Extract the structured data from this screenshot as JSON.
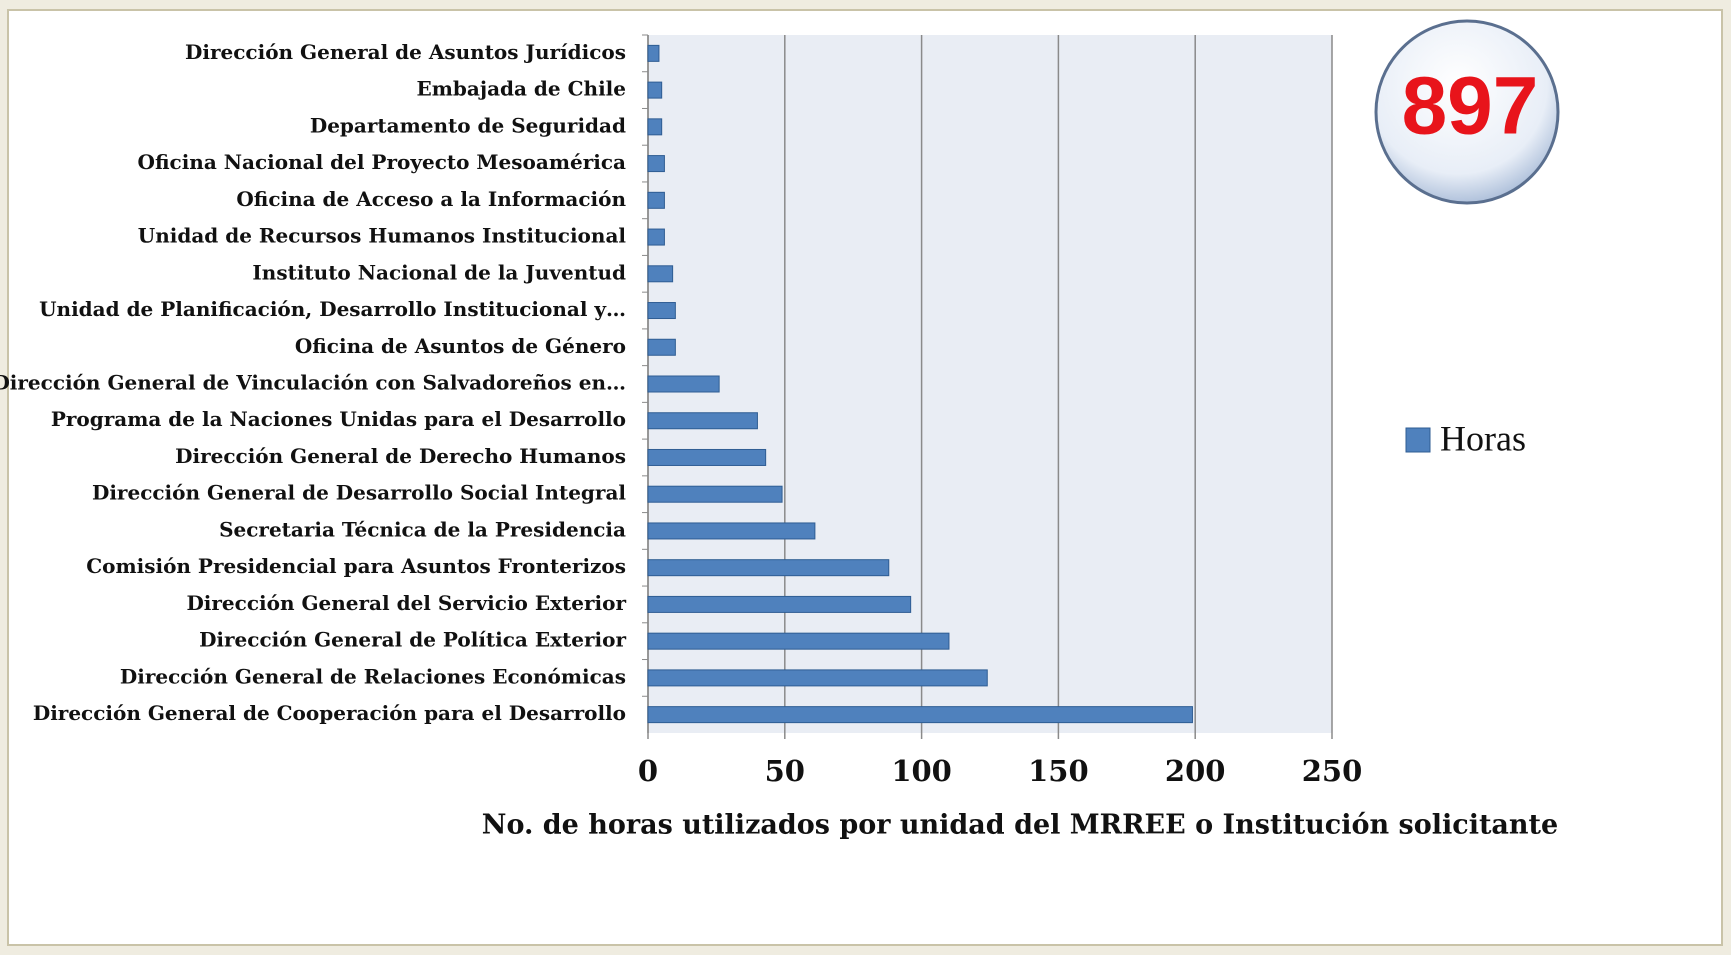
{
  "chart_data": {
    "type": "barh",
    "categories": [
      "Dirección General de Asuntos Jurídicos",
      "Embajada de Chile",
      "Departamento de Seguridad",
      "Oficina Nacional del Proyecto Mesoamérica",
      "Oficina de Acceso a la Información",
      "Unidad de Recursos Humanos Institucional",
      "Instituto Nacional de la Juventud",
      "Unidad de Planificación, Desarrollo Institucional y…",
      "Oficina de Asuntos de Género",
      "Dirección General de Vinculación con Salvadoreños en…",
      "Programa de la Naciones Unidas para el Desarrollo",
      "Dirección General de Derecho Humanos",
      "Dirección General de Desarrollo Social Integral",
      "Secretaria Técnica de la Presidencia",
      "Comisión Presidencial para Asuntos Fronterizos",
      "Dirección General del Servicio Exterior",
      "Dirección General de Política Exterior",
      "Dirección General de Relaciones Económicas",
      "Dirección General de Cooperación para el Desarrollo"
    ],
    "series": [
      {
        "name": "Horas",
        "color": "#4f81bd",
        "values": [
          4,
          5,
          5,
          6,
          6,
          6,
          9,
          10,
          10,
          26,
          40,
          43,
          49,
          61,
          88,
          96,
          110,
          124,
          199
        ]
      }
    ],
    "xlim": [
      0,
      250
    ],
    "xticks": [
      0,
      50,
      100,
      150,
      200,
      250
    ],
    "x_label": "No. de horas utilizados por unidad del MRREE o Institución solicitante",
    "grid": true,
    "legend_position": "right",
    "annotation": "897"
  }
}
